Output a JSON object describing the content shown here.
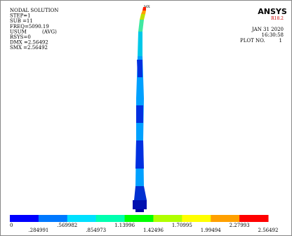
{
  "header": {
    "lines": [
      "NODAL SOLUTION",
      "STEP=1",
      "SUB =11",
      "FREQ=5090.19",
      "USUM",
      "(AVG)",
      "RSYS=0",
      "DMX =2.56492",
      "SMX =2.56492"
    ]
  },
  "logo": {
    "name": "ANSYS",
    "version": "R18.2"
  },
  "info": {
    "date": "JAN 31 2020",
    "time": "16:30:58",
    "plot": "PLOT NO.",
    "plot_number": "1"
  },
  "marker": "MX",
  "legend": {
    "labels": [
      "0",
      ".284991",
      ".569982",
      ".854973",
      "1.13996",
      "1.42496",
      "1.70995",
      "1.99494",
      "2.27993",
      "2.56492"
    ]
  }
}
